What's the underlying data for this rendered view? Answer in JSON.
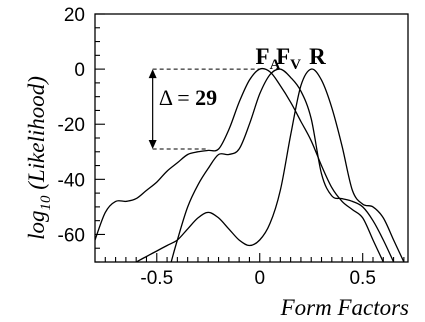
{
  "chart_data": {
    "type": "line",
    "title": "",
    "xlabel": "Form Factors",
    "ylabel_main": "log",
    "ylabel_sub": "10",
    "ylabel_rest": " (Likelihood)",
    "xlim": [
      -0.8,
      0.72
    ],
    "ylim": [
      -70,
      20
    ],
    "x_ticks": [
      -0.5,
      0,
      0.5
    ],
    "x_tick_labels": [
      "-0.5",
      "0",
      "0.5"
    ],
    "y_ticks": [
      20,
      0,
      -20,
      -40,
      -60
    ],
    "y_tick_labels": [
      "20",
      "0",
      "-20",
      "-40",
      "-60"
    ],
    "grid": false,
    "series": [
      {
        "name_main": "F",
        "name_sub": "A",
        "x": [
          -0.8,
          -0.75,
          -0.7,
          -0.65,
          -0.6,
          -0.55,
          -0.5,
          -0.45,
          -0.4,
          -0.35,
          -0.3,
          -0.25,
          -0.2,
          -0.15,
          -0.1,
          -0.05,
          0.0,
          0.05,
          0.1,
          0.15,
          0.2,
          0.25,
          0.3,
          0.35,
          0.4,
          0.45,
          0.5,
          0.55,
          0.6
        ],
        "y": [
          -62,
          -52,
          -48,
          -48,
          -47,
          -44,
          -41,
          -37,
          -34,
          -31,
          -30,
          -29.5,
          -29,
          -22,
          -12,
          -4,
          0,
          -1,
          -6,
          -12,
          -19,
          -26,
          -35,
          -43,
          -48,
          -51,
          -54,
          -62,
          -70
        ]
      },
      {
        "name_main": "F",
        "name_sub": "V",
        "x": [
          -0.43,
          -0.4,
          -0.35,
          -0.3,
          -0.25,
          -0.2,
          -0.15,
          -0.1,
          -0.05,
          0.0,
          0.05,
          0.1,
          0.15,
          0.2,
          0.25,
          0.3,
          0.35,
          0.4,
          0.45,
          0.5,
          0.55,
          0.6,
          0.65
        ],
        "y": [
          -70,
          -62,
          -50,
          -42,
          -36,
          -31,
          -31,
          -29,
          -20,
          -9,
          -2,
          0,
          -3,
          -8,
          -18,
          -38,
          -46,
          -47,
          -48,
          -50,
          -55,
          -62,
          -70
        ]
      },
      {
        "name_main": "R",
        "name_sub": "",
        "x": [
          -0.6,
          -0.55,
          -0.5,
          -0.45,
          -0.4,
          -0.35,
          -0.3,
          -0.25,
          -0.2,
          -0.15,
          -0.1,
          -0.05,
          0.0,
          0.05,
          0.1,
          0.15,
          0.2,
          0.25,
          0.3,
          0.35,
          0.4,
          0.45,
          0.5,
          0.55,
          0.6,
          0.65,
          0.7
        ],
        "y": [
          -70,
          -68,
          -66,
          -64,
          -62,
          -58,
          -54,
          -52,
          -54,
          -58,
          -62,
          -64,
          -62,
          -56,
          -44,
          -24,
          -6,
          0,
          -4,
          -14,
          -28,
          -44,
          -49,
          -50,
          -54,
          -62,
          -70
        ]
      }
    ],
    "series_label_x": [
      0.04,
      0.14,
      0.28
    ],
    "series_label_y": 1.8,
    "annotation": {
      "delta_symbol": "Δ = ",
      "delta_value": "29",
      "arrow_x": -0.52,
      "y_top": 0,
      "y_bottom": -29,
      "dash_from_x": -0.52,
      "dash_top_to_x": 0.0,
      "dash_bottom_to_x": -0.26,
      "label_x": -0.49,
      "label_y": -13
    }
  }
}
